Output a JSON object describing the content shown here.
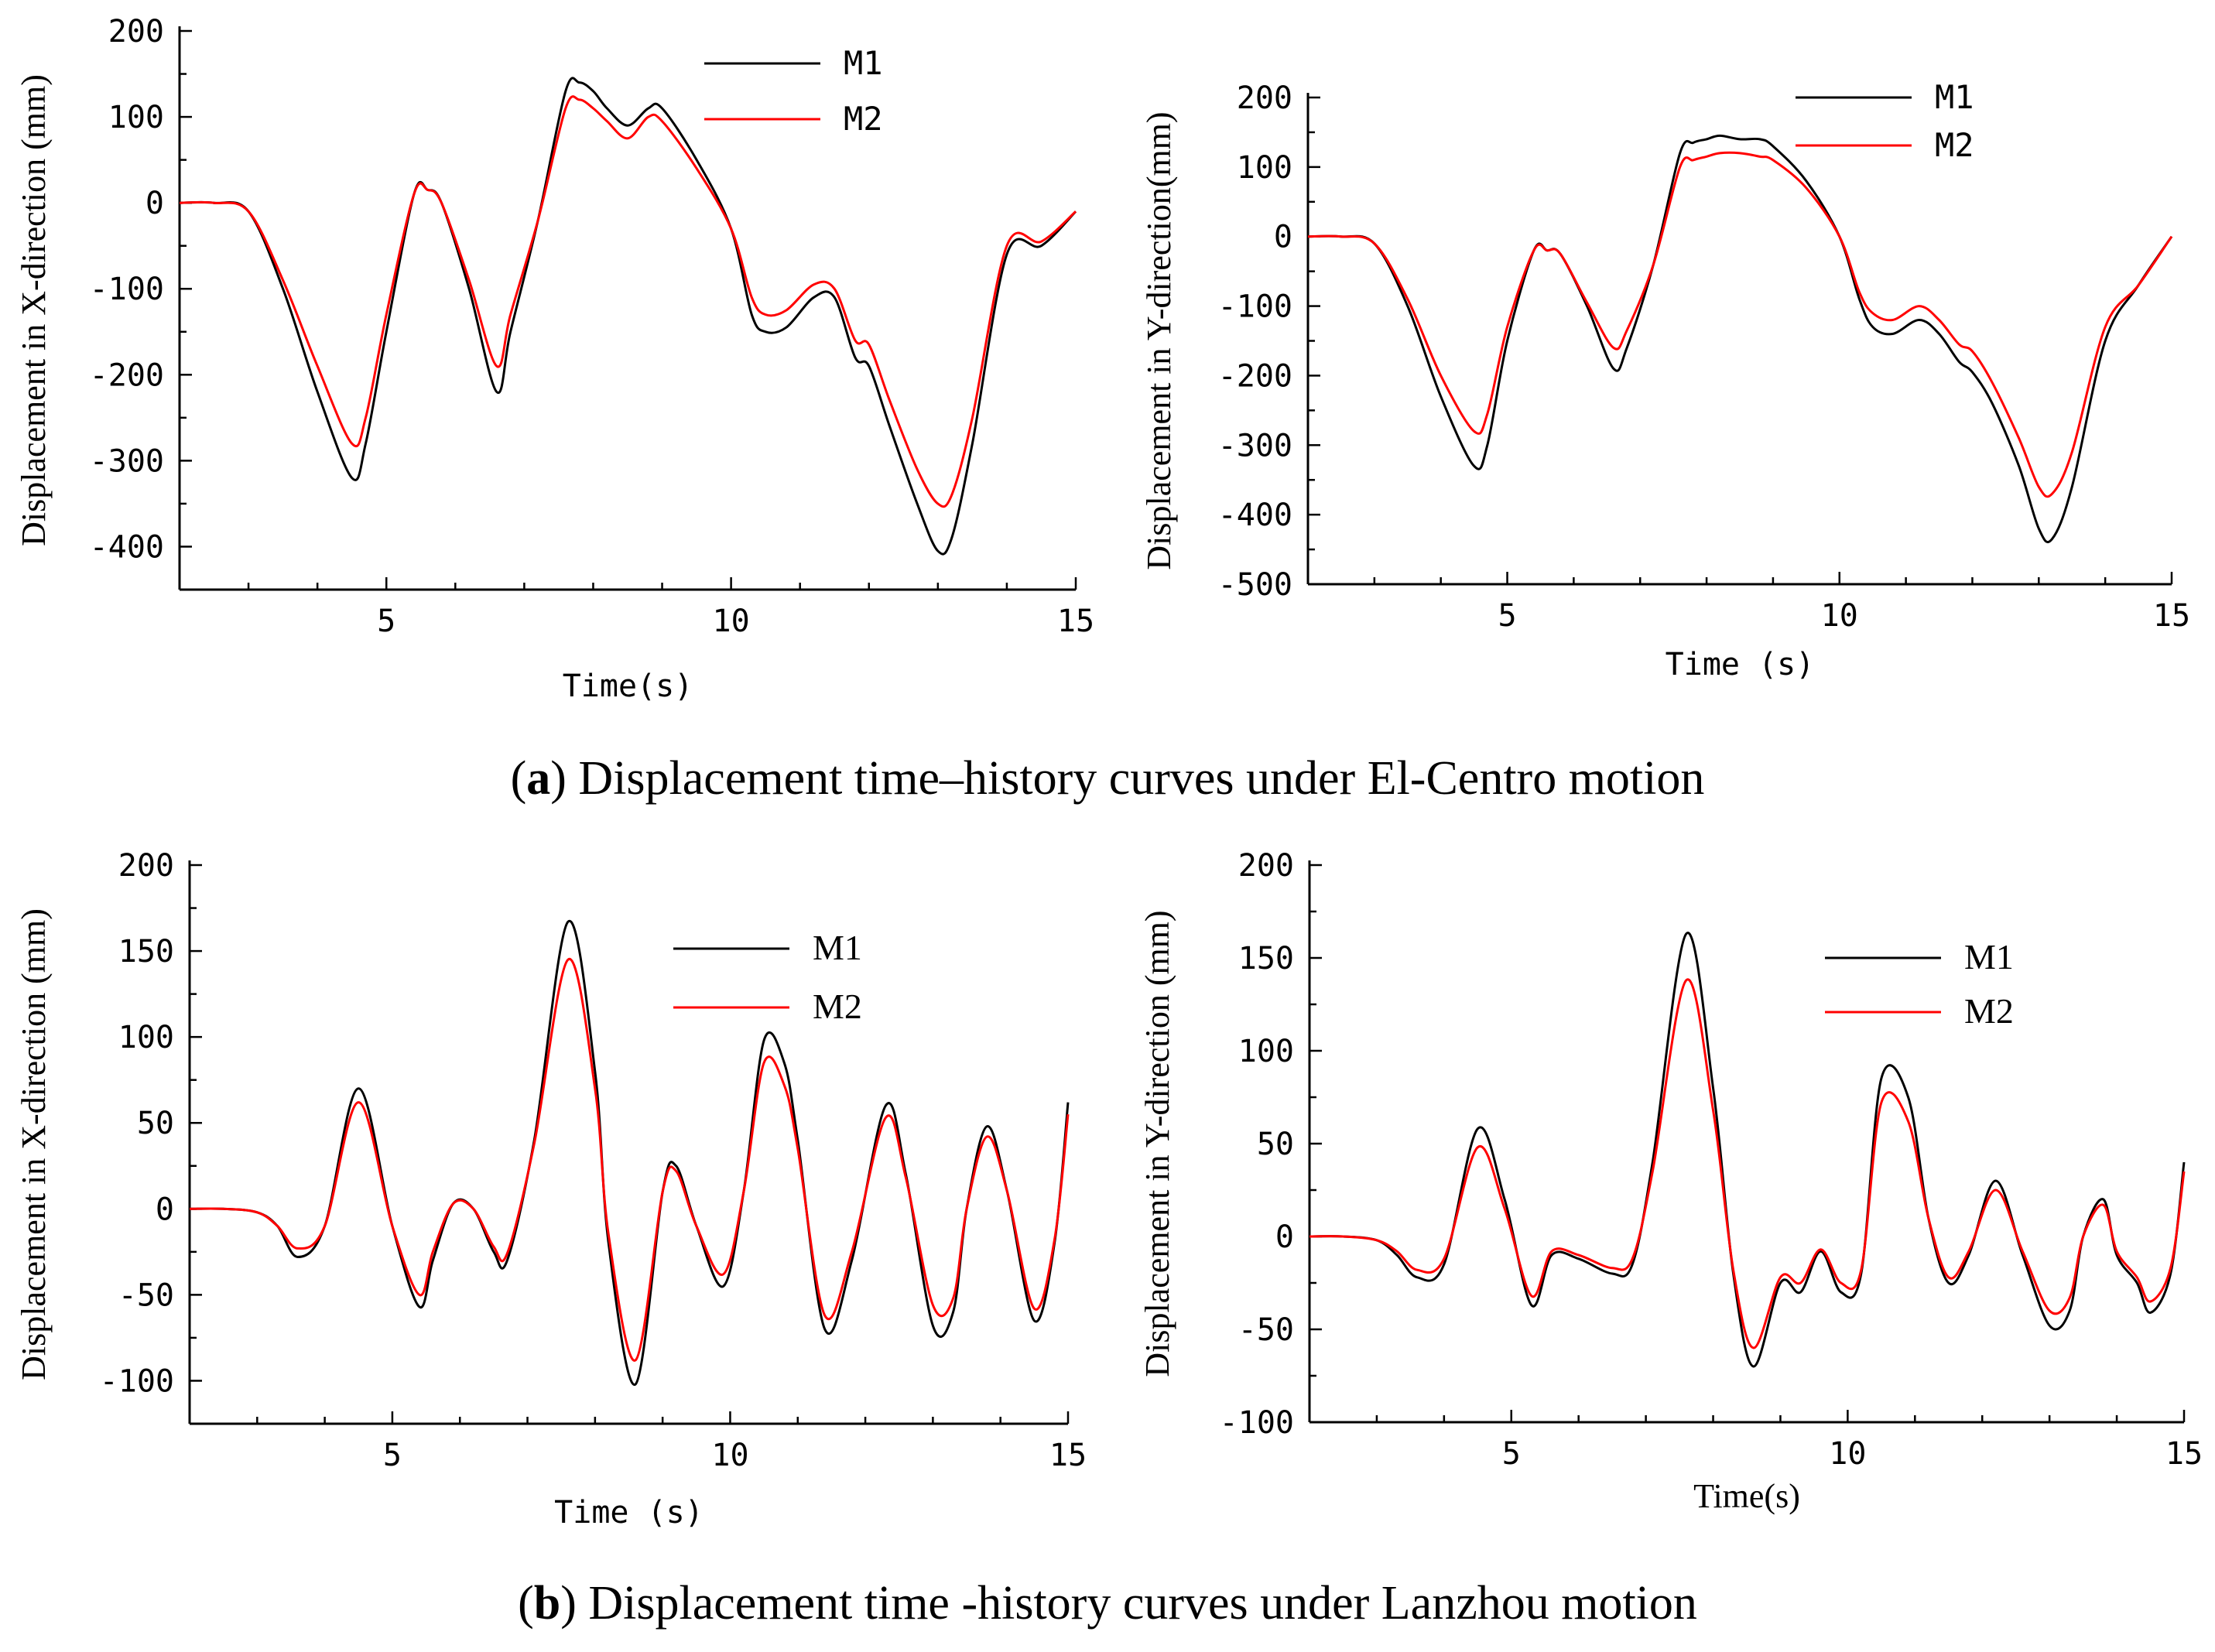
{
  "figure": {
    "caption_a": {
      "prefix": "(",
      "letter": "a",
      "text": ") Displacement time–history curves under El-Centro motion"
    },
    "caption_b": {
      "prefix": "(",
      "letter": "b",
      "text": ") Displacement time -history curves under Lanzhou motion"
    }
  },
  "colors": {
    "M1": "#000000",
    "M2": "#ff0000"
  },
  "chart_data": [
    {
      "id": "a-x",
      "type": "line",
      "title": "",
      "xlabel": "Time(s)",
      "ylabel": "Displacement in X-direction (mm)",
      "xlim": [
        2,
        15
      ],
      "ylim": [
        -450,
        200
      ],
      "xticks": [
        5,
        10,
        15
      ],
      "yticks": [
        -400,
        -300,
        -200,
        -100,
        0,
        100,
        200
      ],
      "legend": [
        "M1",
        "M2"
      ],
      "series": [
        {
          "name": "M1",
          "color": "#000000",
          "x": [
            2,
            2.5,
            3,
            3.5,
            4,
            4.5,
            4.7,
            5,
            5.4,
            5.6,
            5.8,
            6.2,
            6.6,
            6.8,
            7.2,
            7.6,
            7.8,
            8,
            8.2,
            8.5,
            8.8,
            9,
            9.5,
            10,
            10.3,
            10.5,
            10.8,
            11.2,
            11.5,
            11.8,
            12,
            12.3,
            12.7,
            13,
            13.2,
            13.5,
            14,
            14.5,
            15
          ],
          "y": [
            0,
            0,
            -10,
            -100,
            -220,
            -320,
            -280,
            -150,
            10,
            15,
            0,
            -100,
            -220,
            -150,
            -20,
            130,
            140,
            130,
            110,
            90,
            110,
            110,
            50,
            -30,
            -130,
            -150,
            -145,
            -110,
            -110,
            -180,
            -190,
            -260,
            -350,
            -405,
            -390,
            -280,
            -60,
            -50,
            -10
          ]
        },
        {
          "name": "M2",
          "color": "#ff0000",
          "x": [
            2,
            2.5,
            3,
            3.5,
            4,
            4.5,
            4.7,
            5,
            5.4,
            5.6,
            5.8,
            6.2,
            6.6,
            6.8,
            7.2,
            7.6,
            7.8,
            8,
            8.2,
            8.5,
            8.8,
            9,
            9.5,
            10,
            10.3,
            10.5,
            10.8,
            11.2,
            11.5,
            11.8,
            12,
            12.3,
            12.7,
            13,
            13.2,
            13.5,
            14,
            14.5,
            15
          ],
          "y": [
            0,
            0,
            -10,
            -90,
            -190,
            -280,
            -250,
            -130,
            10,
            15,
            0,
            -90,
            -190,
            -130,
            -20,
            110,
            120,
            110,
            95,
            75,
            100,
            95,
            40,
            -30,
            -110,
            -130,
            -125,
            -95,
            -100,
            -160,
            -165,
            -230,
            -310,
            -350,
            -340,
            -250,
            -50,
            -45,
            -10
          ]
        }
      ]
    },
    {
      "id": "a-y",
      "type": "line",
      "title": "",
      "xlabel": "Time (s)",
      "ylabel": "Displacement in Y-direction(mm)",
      "xlim": [
        2,
        15
      ],
      "ylim": [
        -500,
        200
      ],
      "xticks": [
        5,
        10,
        15
      ],
      "yticks": [
        -500,
        -400,
        -300,
        -200,
        -100,
        0,
        100,
        200
      ],
      "legend": [
        "M1",
        "M2"
      ],
      "series": [
        {
          "name": "M1",
          "color": "#000000",
          "x": [
            2,
            2.5,
            3,
            3.5,
            4,
            4.5,
            4.7,
            5,
            5.4,
            5.6,
            5.8,
            6.2,
            6.6,
            6.8,
            7.2,
            7.6,
            7.8,
            8,
            8.2,
            8.5,
            8.8,
            9,
            9.5,
            10,
            10.3,
            10.5,
            10.8,
            11.2,
            11.5,
            11.8,
            12,
            12.3,
            12.7,
            13,
            13.2,
            13.5,
            14,
            14.5,
            15
          ],
          "y": [
            0,
            0,
            -10,
            -100,
            -230,
            -330,
            -300,
            -150,
            -20,
            -20,
            -25,
            -100,
            -190,
            -160,
            -40,
            120,
            135,
            140,
            145,
            140,
            140,
            130,
            80,
            0,
            -90,
            -130,
            -140,
            -120,
            -140,
            -180,
            -195,
            -240,
            -330,
            -420,
            -435,
            -360,
            -150,
            -70,
            0
          ]
        },
        {
          "name": "M2",
          "color": "#ff0000",
          "x": [
            2,
            2.5,
            3,
            3.5,
            4,
            4.5,
            4.7,
            5,
            5.4,
            5.6,
            5.8,
            6.2,
            6.6,
            6.8,
            7.2,
            7.6,
            7.8,
            8,
            8.2,
            8.5,
            8.8,
            9,
            9.5,
            10,
            10.3,
            10.5,
            10.8,
            11.2,
            11.5,
            11.8,
            12,
            12.3,
            12.7,
            13,
            13.2,
            13.5,
            14,
            14.5,
            15
          ],
          "y": [
            0,
            0,
            -10,
            -90,
            -200,
            -280,
            -255,
            -130,
            -20,
            -20,
            -25,
            -95,
            -160,
            -135,
            -40,
            100,
            110,
            115,
            120,
            120,
            115,
            110,
            70,
            0,
            -80,
            -110,
            -120,
            -100,
            -120,
            -155,
            -165,
            -210,
            -290,
            -360,
            -370,
            -310,
            -130,
            -70,
            0
          ]
        }
      ]
    },
    {
      "id": "b-x",
      "type": "line",
      "title": "",
      "xlabel": "Time (s)",
      "ylabel": "Displacement in X-direction (mm)",
      "xlim": [
        2,
        15
      ],
      "ylim": [
        -125,
        200
      ],
      "xticks": [
        5,
        10,
        15
      ],
      "yticks": [
        -100,
        -50,
        0,
        50,
        100,
        150,
        200
      ],
      "legend": [
        "M1",
        "M2"
      ],
      "series": [
        {
          "name": "M1",
          "color": "#000000",
          "x": [
            2,
            2.5,
            3,
            3.3,
            3.6,
            4,
            4.5,
            5,
            5.4,
            5.6,
            5.9,
            6.2,
            6.5,
            6.7,
            7.1,
            7.6,
            8,
            8.2,
            8.6,
            9,
            9.2,
            9.5,
            9.9,
            10.2,
            10.5,
            10.8,
            11,
            11.4,
            11.8,
            12.3,
            12.6,
            13,
            13.3,
            13.5,
            13.8,
            14.1,
            14.5,
            14.8,
            15
          ],
          "y": [
            0,
            0,
            -2,
            -10,
            -28,
            -10,
            70,
            -10,
            -57,
            -30,
            3,
            0,
            -25,
            -30,
            40,
            167,
            80,
            -20,
            -102,
            10,
            25,
            -10,
            -45,
            10,
            98,
            85,
            40,
            -70,
            -30,
            60,
            20,
            -68,
            -60,
            0,
            48,
            10,
            -65,
            -20,
            62
          ]
        },
        {
          "name": "M2",
          "color": "#ff0000",
          "x": [
            2,
            2.5,
            3,
            3.3,
            3.6,
            4,
            4.5,
            5,
            5.4,
            5.6,
            5.9,
            6.2,
            6.5,
            6.7,
            7.1,
            7.6,
            8,
            8.2,
            8.6,
            9,
            9.2,
            9.5,
            9.9,
            10.2,
            10.5,
            10.8,
            11,
            11.4,
            11.8,
            12.3,
            12.6,
            13,
            13.3,
            13.5,
            13.8,
            14.1,
            14.5,
            14.8,
            15
          ],
          "y": [
            0,
            0,
            -2,
            -10,
            -23,
            -10,
            62,
            -10,
            -50,
            -25,
            3,
            0,
            -22,
            -26,
            38,
            145,
            70,
            -15,
            -88,
            10,
            22,
            -10,
            -38,
            10,
            85,
            72,
            35,
            -62,
            -25,
            53,
            18,
            -56,
            -52,
            0,
            42,
            10,
            -58,
            -18,
            55
          ]
        }
      ]
    },
    {
      "id": "b-y",
      "type": "line",
      "title": "",
      "xlabel": "Time(s)",
      "ylabel": "Displacement in Y-direction (mm)",
      "xlim": [
        2,
        15
      ],
      "ylim": [
        -100,
        200
      ],
      "xticks": [
        5,
        10,
        15
      ],
      "yticks": [
        -100,
        -50,
        0,
        50,
        100,
        150,
        200
      ],
      "legend": [
        "M1",
        "M2"
      ],
      "series": [
        {
          "name": "M1",
          "color": "#000000",
          "x": [
            2,
            2.5,
            3,
            3.3,
            3.6,
            4,
            4.5,
            4.9,
            5.3,
            5.6,
            6,
            6.5,
            6.8,
            7.1,
            7.6,
            8,
            8.3,
            8.6,
            9,
            9.3,
            9.6,
            9.9,
            10.2,
            10.5,
            10.9,
            11.2,
            11.5,
            11.8,
            12.2,
            12.6,
            13,
            13.3,
            13.5,
            13.8,
            14,
            14.3,
            14.5,
            14.8,
            15
          ],
          "y": [
            0,
            0,
            -2,
            -10,
            -22,
            -15,
            58,
            20,
            -37,
            -10,
            -12,
            -20,
            -15,
            40,
            163,
            80,
            -20,
            -70,
            -25,
            -30,
            -8,
            -30,
            -20,
            85,
            75,
            10,
            -25,
            -10,
            30,
            -10,
            -48,
            -40,
            0,
            20,
            -10,
            -25,
            -41,
            -20,
            40
          ]
        },
        {
          "name": "M2",
          "color": "#ff0000",
          "x": [
            2,
            2.5,
            3,
            3.3,
            3.6,
            4,
            4.5,
            4.9,
            5.3,
            5.6,
            6,
            6.5,
            6.8,
            7.1,
            7.6,
            8,
            8.3,
            8.6,
            9,
            9.3,
            9.6,
            9.9,
            10.2,
            10.5,
            10.9,
            11.2,
            11.5,
            11.8,
            12.2,
            12.6,
            13,
            13.3,
            13.5,
            13.8,
            14,
            14.3,
            14.5,
            14.8,
            15
          ],
          "y": [
            0,
            0,
            -2,
            -8,
            -18,
            -12,
            48,
            15,
            -32,
            -8,
            -10,
            -17,
            -12,
            35,
            138,
            68,
            -18,
            -60,
            -22,
            -25,
            -7,
            -25,
            -18,
            72,
            62,
            10,
            -22,
            -8,
            25,
            -8,
            -40,
            -33,
            0,
            17,
            -8,
            -22,
            -35,
            -17,
            35
          ]
        }
      ]
    }
  ]
}
